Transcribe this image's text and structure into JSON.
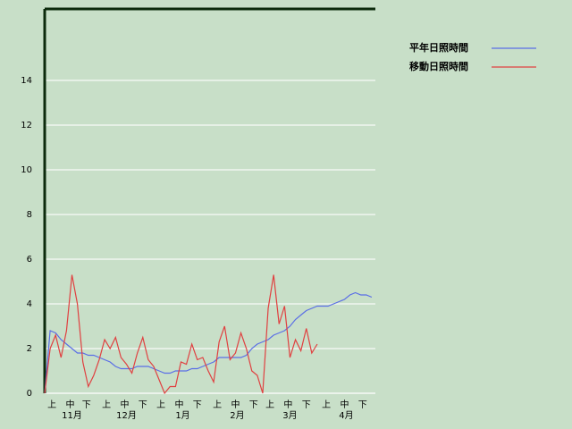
{
  "chart_data": {
    "type": "line",
    "x": [
      0,
      3,
      6,
      9,
      12,
      15,
      18,
      21,
      24,
      27,
      30,
      33,
      36,
      39,
      42,
      45,
      48,
      51,
      54,
      57,
      60,
      63,
      66,
      69,
      72,
      75,
      78,
      81,
      84,
      87,
      90,
      93,
      96,
      99,
      102,
      105,
      108,
      111,
      114,
      117,
      120,
      123,
      126,
      129,
      132,
      135,
      138,
      141,
      144,
      147,
      150,
      153,
      156,
      159,
      162,
      165,
      168,
      171,
      174,
      177,
      180
    ],
    "series": [
      {
        "name": "平年日照時間",
        "color": "#5a6ee6",
        "values": [
          0,
          2.8,
          2.7,
          2.4,
          2.2,
          2.0,
          1.8,
          1.8,
          1.7,
          1.7,
          1.6,
          1.5,
          1.4,
          1.2,
          1.1,
          1.1,
          1.1,
          1.2,
          1.2,
          1.2,
          1.1,
          1.0,
          0.9,
          0.9,
          1.0,
          1.0,
          1.0,
          1.1,
          1.1,
          1.2,
          1.3,
          1.4,
          1.6,
          1.6,
          1.6,
          1.6,
          1.6,
          1.7,
          2.0,
          2.2,
          2.3,
          2.4,
          2.6,
          2.7,
          2.8,
          3.0,
          3.3,
          3.5,
          3.7,
          3.8,
          3.9,
          3.9,
          3.9,
          4.0,
          4.1,
          4.2,
          4.4,
          4.5,
          4.4,
          4.4,
          4.3
        ]
      },
      {
        "name": "移動日照時間",
        "color": "#e04040",
        "values": [
          0,
          2.0,
          2.6,
          1.6,
          2.8,
          5.3,
          4.0,
          1.4,
          0.3,
          0.8,
          1.5,
          2.4,
          2.0,
          2.5,
          1.6,
          1.3,
          0.9,
          1.8,
          2.5,
          1.5,
          1.2,
          0.6,
          0.0,
          0.3,
          0.3,
          1.4,
          1.3,
          2.2,
          1.5,
          1.6,
          1.0,
          0.5,
          2.3,
          3.0,
          1.5,
          1.8,
          2.7,
          2.0,
          1.0,
          0.8,
          0.0,
          3.8,
          5.3,
          3.1,
          3.9,
          1.6,
          2.4,
          1.9,
          2.9,
          1.8,
          2.2,
          null,
          null,
          null,
          null,
          null,
          null,
          null,
          null,
          null,
          null
        ]
      }
    ],
    "xlim": [
      0,
      182
    ],
    "xticks": [
      {
        "value": 4,
        "label": "上"
      },
      {
        "value": 14,
        "label": "中"
      },
      {
        "value": 23,
        "label": "下"
      },
      {
        "value": 34,
        "label": "上"
      },
      {
        "value": 44,
        "label": "中"
      },
      {
        "value": 54,
        "label": "下"
      },
      {
        "value": 64,
        "label": "上"
      },
      {
        "value": 74,
        "label": "中"
      },
      {
        "value": 84,
        "label": "下"
      },
      {
        "value": 95,
        "label": "上"
      },
      {
        "value": 105,
        "label": "中"
      },
      {
        "value": 115,
        "label": "下"
      },
      {
        "value": 124,
        "label": "上"
      },
      {
        "value": 134,
        "label": "中"
      },
      {
        "value": 144,
        "label": "下"
      },
      {
        "value": 155,
        "label": "上"
      },
      {
        "value": 165,
        "label": "中"
      },
      {
        "value": 175,
        "label": "下"
      }
    ],
    "month_labels": [
      {
        "value": 15,
        "label": "11月"
      },
      {
        "value": 45,
        "label": "12月"
      },
      {
        "value": 76,
        "label": "1月"
      },
      {
        "value": 106,
        "label": "2月"
      },
      {
        "value": 135,
        "label": "3月"
      },
      {
        "value": 166,
        "label": "4月"
      }
    ],
    "ylim": [
      0,
      17.2
    ],
    "yticks": [
      0,
      2,
      4,
      6,
      8,
      10,
      12,
      14
    ],
    "grid": true
  }
}
